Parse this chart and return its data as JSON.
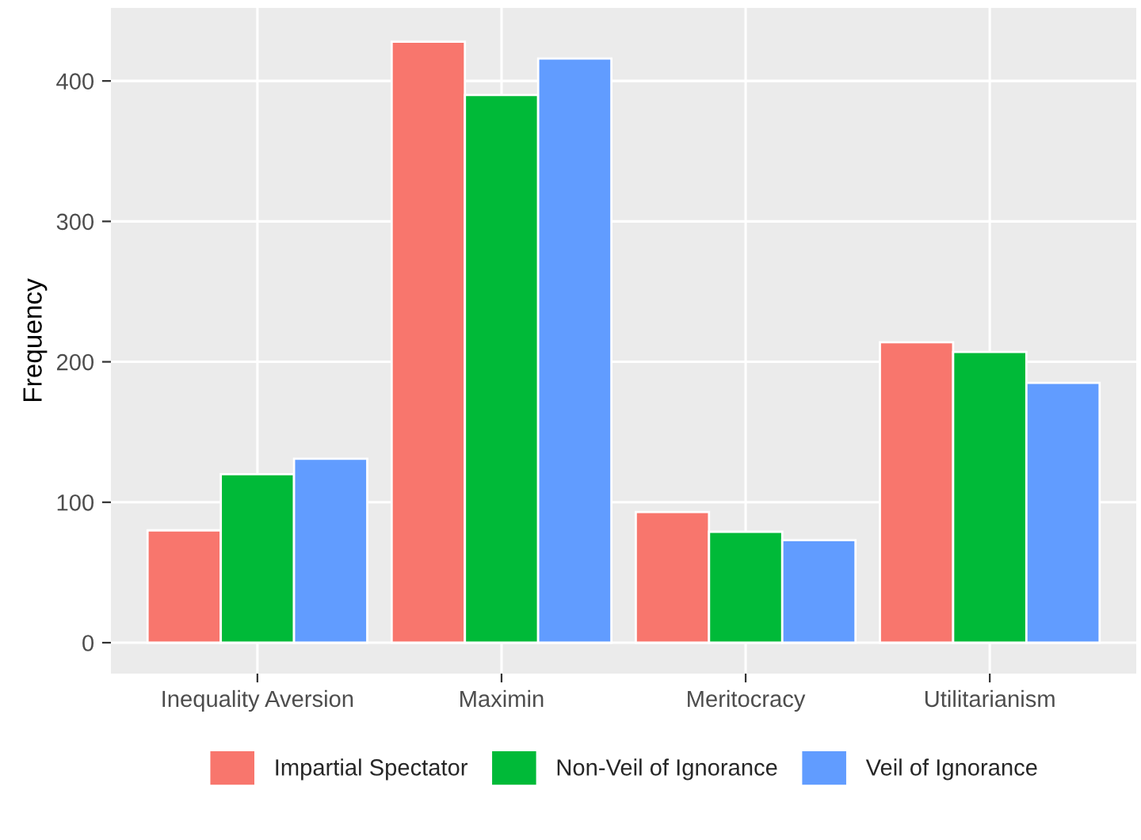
{
  "chart_data": {
    "type": "bar",
    "ylabel": "Frequency",
    "categories": [
      "Inequality Aversion",
      "Maximin",
      "Meritocracy",
      "Utilitarianism"
    ],
    "series": [
      {
        "name": "Impartial Spectator",
        "color": "#f8766d",
        "values": [
          80,
          428,
          93,
          214
        ]
      },
      {
        "name": "Non-Veil of Ignorance",
        "color": "#00ba38",
        "values": [
          120,
          390,
          79,
          207
        ]
      },
      {
        "name": "Veil of Ignorance",
        "color": "#619cff",
        "values": [
          131,
          416,
          73,
          185
        ]
      }
    ],
    "ylim": [
      -22,
      452
    ],
    "yticks": [
      0,
      100,
      200,
      300,
      400
    ],
    "grid": true,
    "legend": "bottom"
  }
}
